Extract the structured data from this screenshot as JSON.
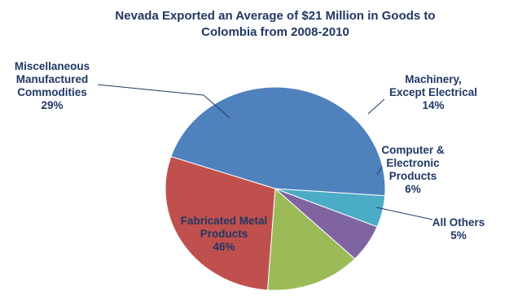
{
  "chart_data": {
    "type": "pie",
    "title": [
      "Nevada Exported an Average of $21 Million in Goods to",
      "Colombia from 2008-2010"
    ],
    "slices": [
      {
        "name": "Fabricated Metal Products",
        "label_lines": [
          "Fabricated Metal",
          "Products"
        ],
        "pct_label": "46%",
        "value": 46,
        "color": "#4f81bd"
      },
      {
        "name": "Miscellaneous Manufactured Commodities",
        "label_lines": [
          "Miscellaneous",
          "Manufactured",
          "Commodities"
        ],
        "pct_label": "29%",
        "value": 29,
        "color": "#c0504d"
      },
      {
        "name": "Machinery, Except Electrical",
        "label_lines": [
          "Machinery,",
          "Except Electrical"
        ],
        "pct_label": "14%",
        "value": 14,
        "color": "#9bbb59"
      },
      {
        "name": "Computer & Electronic Products",
        "label_lines": [
          "Computer &",
          "Electronic",
          "Products"
        ],
        "pct_label": "6%",
        "value": 6,
        "color": "#8064a2"
      },
      {
        "name": "All Others",
        "label_lines": [
          "All Others"
        ],
        "pct_label": "5%",
        "value": 5,
        "color": "#4bacc6"
      }
    ],
    "start_angle_deg": -4,
    "direction": "counterclockwise",
    "legend": "none",
    "data_labels": "outside-with-leader-lines"
  }
}
